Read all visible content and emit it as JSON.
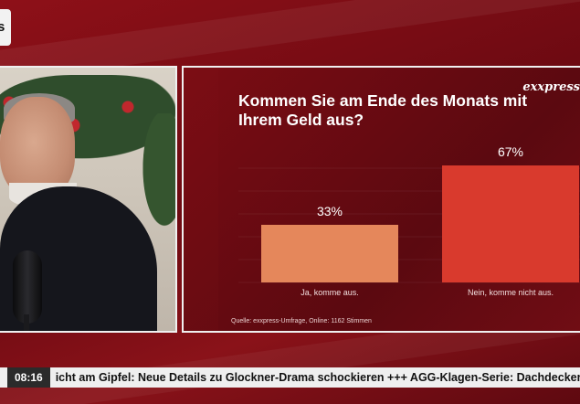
{
  "brand": {
    "logo_text": "exxpress",
    "corner_logo": "s"
  },
  "colors": {
    "background": "#7d0c14",
    "bar_ja": "#e5875b",
    "bar_nein": "#d93a2d",
    "ticker_bg": "#efefef"
  },
  "chart_data": {
    "type": "bar",
    "title": "Kommen Sie am Ende des Monats mit Ihrem Geld aus?",
    "categories": [
      "Ja, komme aus.",
      "Nein, komme nicht aus."
    ],
    "values": [
      33,
      67
    ],
    "value_labels": [
      "33%",
      "67%"
    ],
    "ylim": [
      0,
      67
    ],
    "grid": true,
    "legend": "none",
    "source": "Quelle:  exxpress-Umfrage, Online: 1162 Stimmen"
  },
  "ticker": {
    "time": "08:16",
    "text": "icht am Gipfel: Neue Details zu Glockner-Drama schockieren  +++ AGG-Klagen-Serie: Dachdecker m"
  }
}
